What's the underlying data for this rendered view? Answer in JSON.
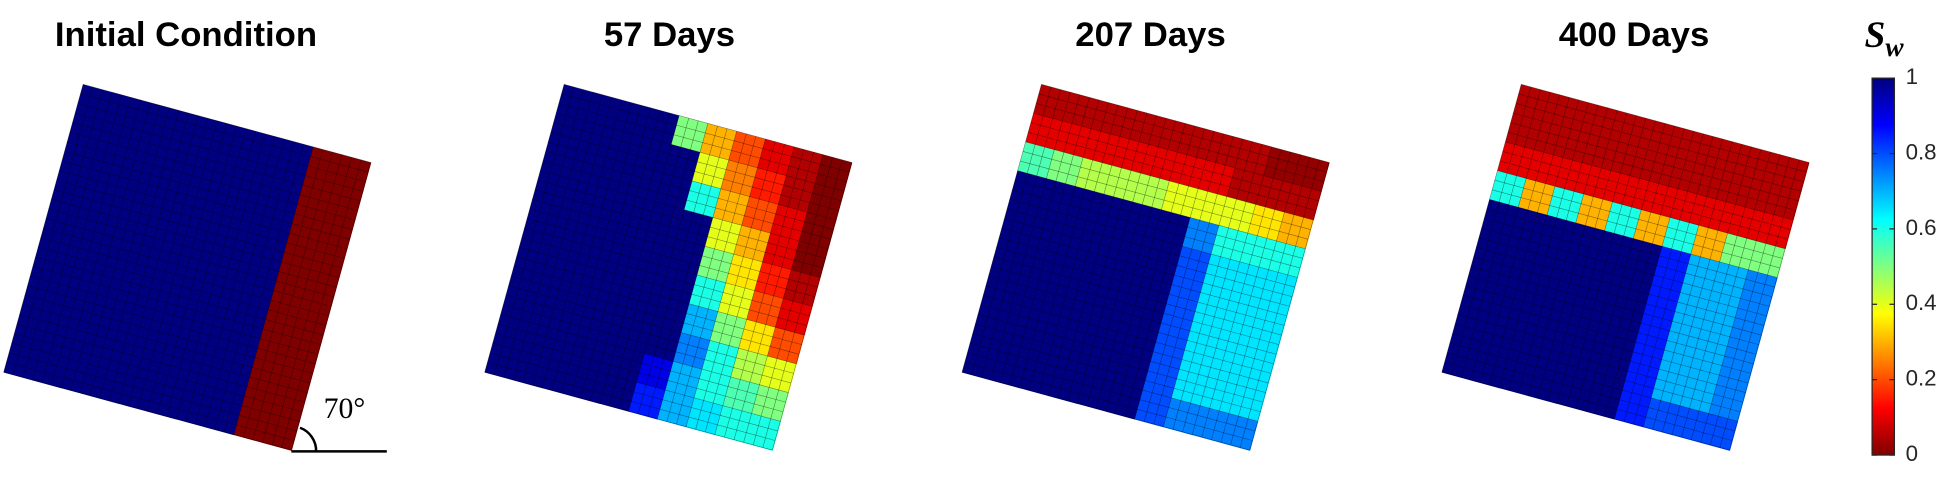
{
  "chart_data": [
    {
      "type": "heatmap",
      "title": "Initial Condition",
      "annotation": "70°",
      "z": [
        [
          1,
          1,
          1,
          1,
          1,
          1,
          1,
          1,
          0,
          0
        ],
        [
          1,
          1,
          1,
          1,
          1,
          1,
          1,
          1,
          0,
          0
        ],
        [
          1,
          1,
          1,
          1,
          1,
          1,
          1,
          1,
          0,
          0
        ],
        [
          1,
          1,
          1,
          1,
          1,
          1,
          1,
          1,
          0,
          0
        ],
        [
          1,
          1,
          1,
          1,
          1,
          1,
          1,
          1,
          0,
          0
        ],
        [
          1,
          1,
          1,
          1,
          1,
          1,
          1,
          1,
          0,
          0
        ],
        [
          1,
          1,
          1,
          1,
          1,
          1,
          1,
          1,
          0,
          0
        ],
        [
          1,
          1,
          1,
          1,
          1,
          1,
          1,
          1,
          0,
          0
        ],
        [
          1,
          1,
          1,
          1,
          1,
          1,
          1,
          1,
          0,
          0
        ],
        [
          1,
          1,
          1,
          1,
          1,
          1,
          1,
          1,
          0,
          0
        ]
      ]
    },
    {
      "type": "heatmap",
      "title": "57 Days",
      "z": [
        [
          1,
          1,
          1,
          1,
          0.5,
          0.3,
          0.2,
          0.1,
          0.05,
          0
        ],
        [
          1,
          1,
          1,
          1,
          1,
          0.4,
          0.25,
          0.15,
          0.05,
          0
        ],
        [
          1,
          1,
          1,
          1,
          1,
          0.6,
          0.3,
          0.2,
          0.1,
          0
        ],
        [
          1,
          1,
          1,
          1,
          1,
          1,
          0.4,
          0.3,
          0.1,
          0
        ],
        [
          1,
          1,
          1,
          1,
          1,
          1,
          0.5,
          0.35,
          0.15,
          0.05
        ],
        [
          1,
          1,
          1,
          1,
          1,
          1,
          0.6,
          0.4,
          0.2,
          0.1
        ],
        [
          1,
          1,
          1,
          1,
          1,
          1,
          0.7,
          0.5,
          0.35,
          0.2
        ],
        [
          1,
          1,
          1,
          1,
          1,
          1,
          0.75,
          0.6,
          0.45,
          0.4
        ],
        [
          1,
          1,
          1,
          1,
          1,
          0.9,
          0.7,
          0.6,
          0.55,
          0.5
        ],
        [
          1,
          1,
          1,
          1,
          1,
          0.85,
          0.7,
          0.65,
          0.6,
          0.6
        ]
      ]
    },
    {
      "type": "heatmap",
      "title": "207 Days",
      "z": [
        [
          0.05,
          0.05,
          0.05,
          0.05,
          0.05,
          0.05,
          0.05,
          0.05,
          0.02,
          0.02
        ],
        [
          0.1,
          0.1,
          0.1,
          0.1,
          0.1,
          0.1,
          0.1,
          0.05,
          0.05,
          0.05
        ],
        [
          0.55,
          0.5,
          0.45,
          0.45,
          0.45,
          0.4,
          0.4,
          0.4,
          0.35,
          0.3
        ],
        [
          1,
          1,
          1,
          1,
          1,
          1,
          0.75,
          0.6,
          0.6,
          0.6
        ],
        [
          1,
          1,
          1,
          1,
          1,
          1,
          0.8,
          0.65,
          0.65,
          0.65
        ],
        [
          1,
          1,
          1,
          1,
          1,
          1,
          0.8,
          0.65,
          0.65,
          0.65
        ],
        [
          1,
          1,
          1,
          1,
          1,
          1,
          0.8,
          0.65,
          0.65,
          0.65
        ],
        [
          1,
          1,
          1,
          1,
          1,
          1,
          0.8,
          0.65,
          0.65,
          0.65
        ],
        [
          1,
          1,
          1,
          1,
          1,
          1,
          0.8,
          0.65,
          0.65,
          0.65
        ],
        [
          1,
          1,
          1,
          1,
          1,
          1,
          0.8,
          0.75,
          0.75,
          0.75
        ]
      ]
    },
    {
      "type": "heatmap",
      "title": "400 Days",
      "z": [
        [
          0.05,
          0.05,
          0.05,
          0.05,
          0.05,
          0.05,
          0.05,
          0.05,
          0.05,
          0.05
        ],
        [
          0.05,
          0.05,
          0.05,
          0.05,
          0.05,
          0.05,
          0.05,
          0.05,
          0.05,
          0.05
        ],
        [
          0.1,
          0.1,
          0.1,
          0.1,
          0.1,
          0.1,
          0.1,
          0.1,
          0.1,
          0.1
        ],
        [
          0.6,
          0.3,
          0.6,
          0.3,
          0.6,
          0.3,
          0.6,
          0.3,
          0.5,
          0.5
        ],
        [
          1,
          1,
          1,
          1,
          1,
          1,
          0.85,
          0.7,
          0.7,
          0.75
        ],
        [
          1,
          1,
          1,
          1,
          1,
          1,
          0.85,
          0.7,
          0.7,
          0.75
        ],
        [
          1,
          1,
          1,
          1,
          1,
          1,
          0.85,
          0.7,
          0.7,
          0.75
        ],
        [
          1,
          1,
          1,
          1,
          1,
          1,
          0.85,
          0.7,
          0.7,
          0.75
        ],
        [
          1,
          1,
          1,
          1,
          1,
          1,
          0.85,
          0.7,
          0.7,
          0.75
        ],
        [
          1,
          1,
          1,
          1,
          1,
          1,
          0.85,
          0.8,
          0.8,
          0.8
        ]
      ]
    }
  ],
  "colorbar": {
    "label": "S",
    "label_subscript": "w",
    "colormap": "jet_reversed",
    "clim": [
      0,
      1
    ],
    "ticks": [
      0,
      0.2,
      0.4,
      0.6,
      0.8,
      1
    ]
  }
}
